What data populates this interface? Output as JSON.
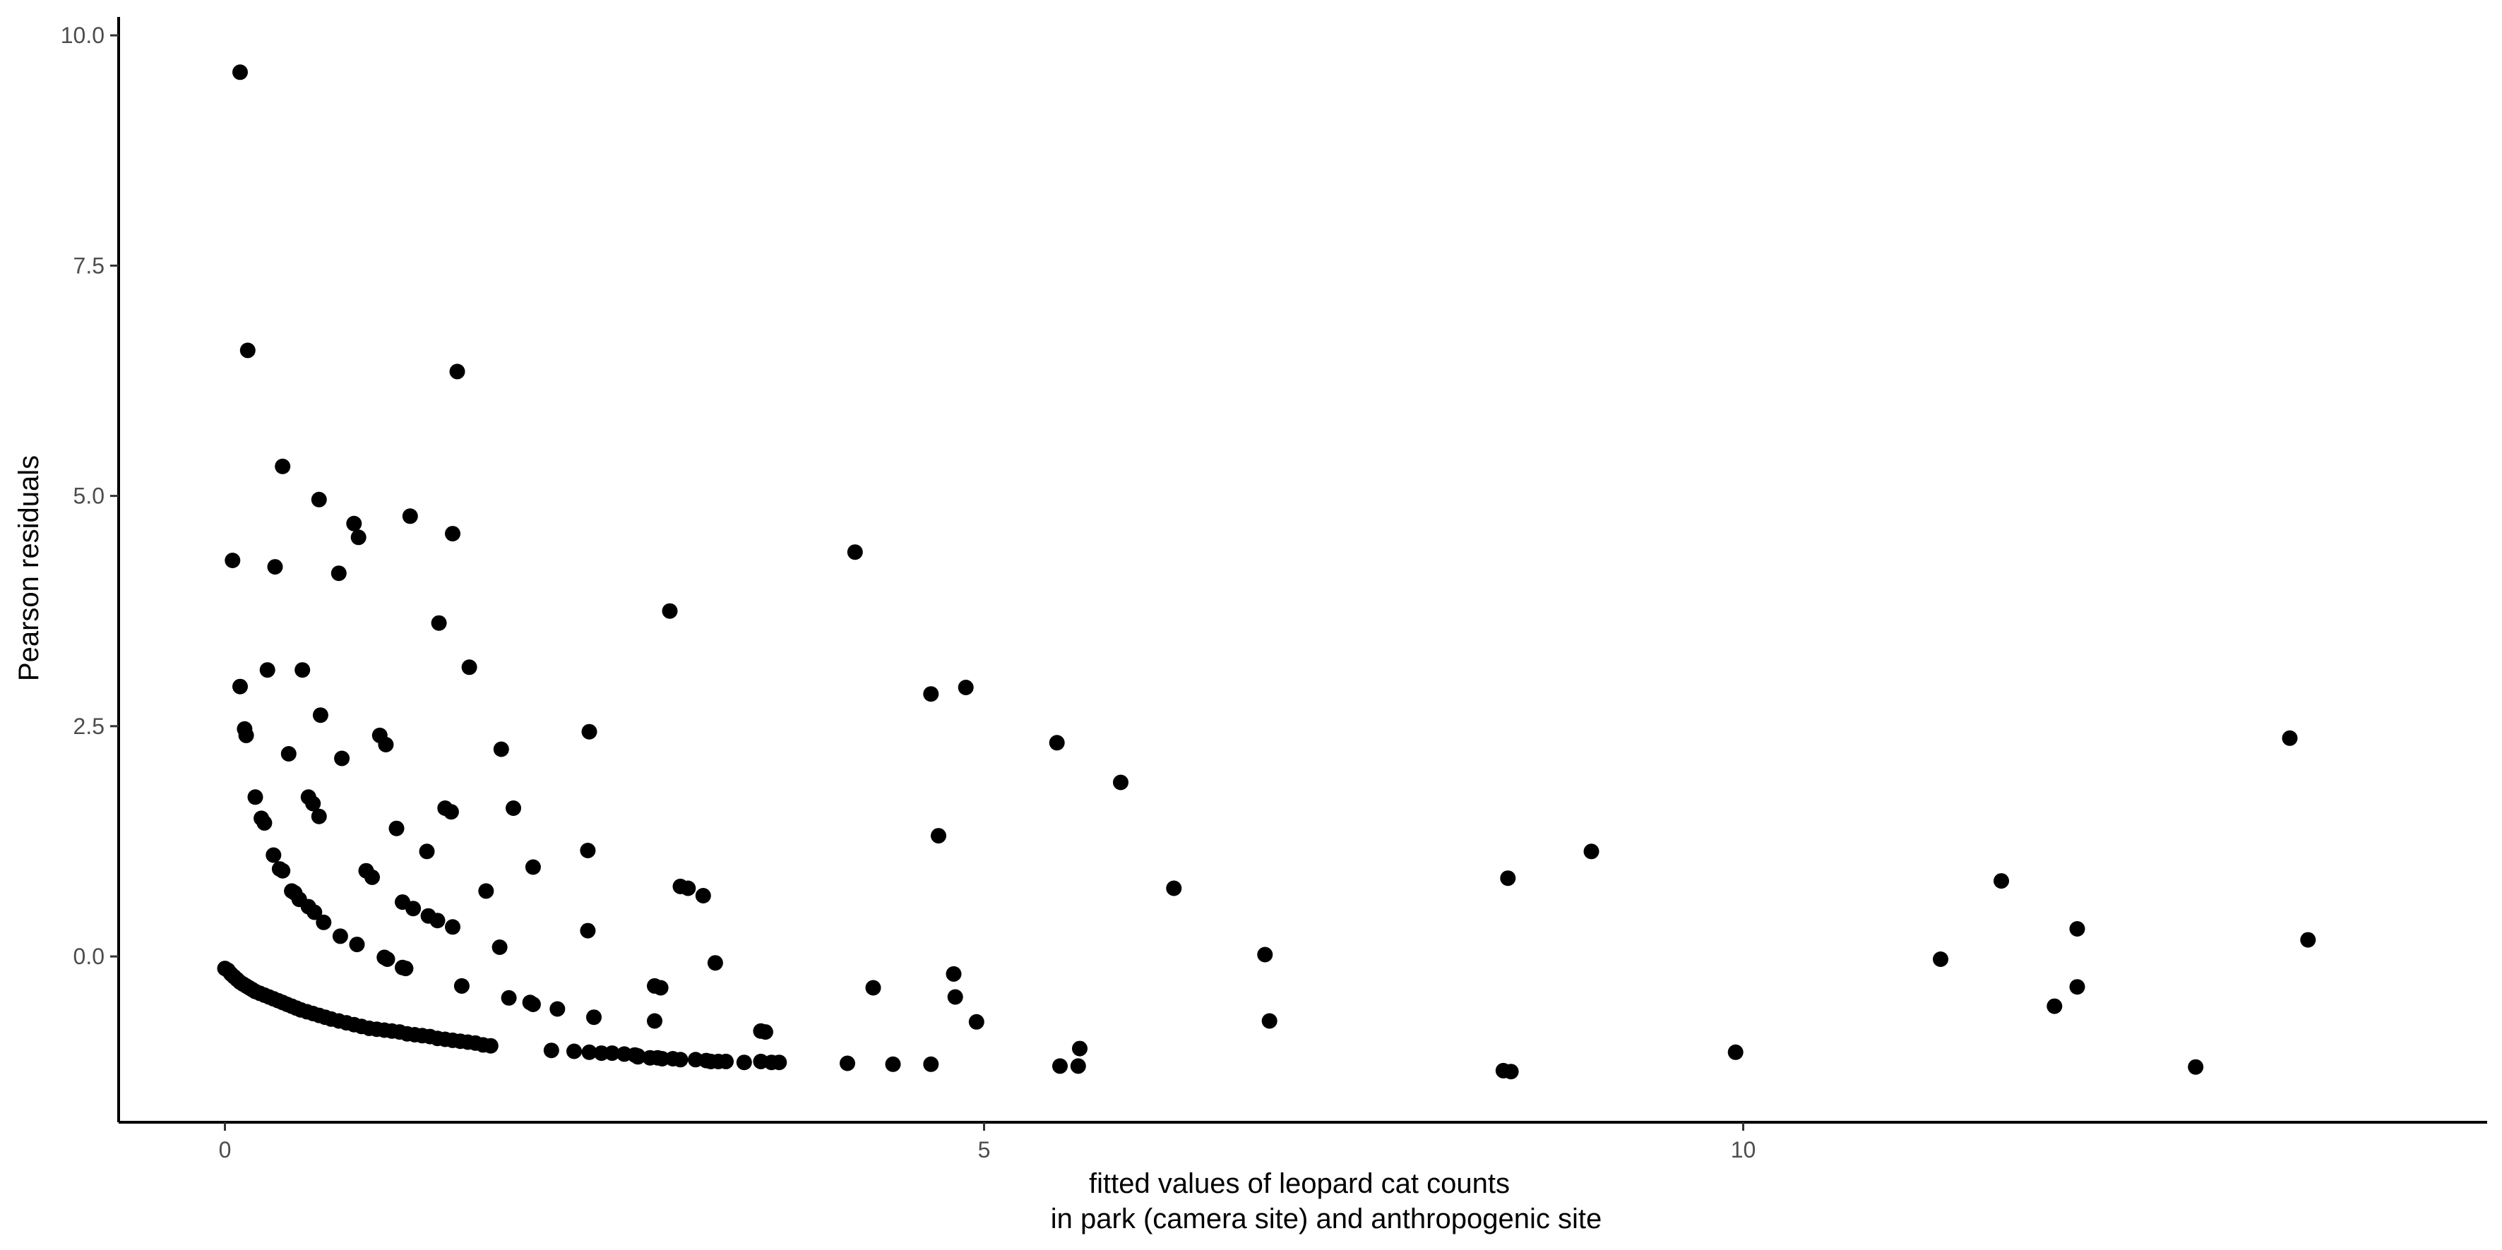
{
  "chart_data": {
    "type": "scatter",
    "title": "",
    "xlabel_lines": [
      "fitted values of leopard cat counts",
      "in park (camera site) and anthropogenic site"
    ],
    "ylabel": "Pearson residuals",
    "xlim": [
      -0.7,
      14.9
    ],
    "ylim": [
      -1.8,
      10.2
    ],
    "x_ticks": [
      0,
      5,
      10
    ],
    "x_tick_labels": [
      "0",
      "5",
      "10"
    ],
    "y_ticks": [
      0,
      2.5,
      5,
      7.5,
      10
    ],
    "y_tick_labels": [
      "0.0",
      "2.5",
      "5.0",
      "7.5",
      "10.0"
    ],
    "grid": false,
    "legend": "none",
    "point_color": "#000000",
    "points": [
      [
        0.0,
        -0.13
      ],
      [
        0.02,
        -0.15
      ],
      [
        0.04,
        -0.19
      ],
      [
        0.06,
        -0.22
      ],
      [
        0.08,
        -0.25
      ],
      [
        0.1,
        -0.28
      ],
      [
        0.12,
        -0.3
      ],
      [
        0.14,
        -0.32
      ],
      [
        0.16,
        -0.34
      ],
      [
        0.18,
        -0.36
      ],
      [
        0.2,
        -0.38
      ],
      [
        0.23,
        -0.4
      ],
      [
        0.26,
        -0.42
      ],
      [
        0.29,
        -0.44
      ],
      [
        0.32,
        -0.46
      ],
      [
        0.35,
        -0.48
      ],
      [
        0.38,
        -0.5
      ],
      [
        0.41,
        -0.52
      ],
      [
        0.44,
        -0.54
      ],
      [
        0.47,
        -0.56
      ],
      [
        0.5,
        -0.58
      ],
      [
        0.54,
        -0.6
      ],
      [
        0.58,
        -0.62
      ],
      [
        0.62,
        -0.64
      ],
      [
        0.66,
        -0.66
      ],
      [
        0.7,
        -0.68
      ],
      [
        0.75,
        -0.7
      ],
      [
        0.8,
        -0.72
      ],
      [
        0.85,
        -0.74
      ],
      [
        0.9,
        -0.76
      ],
      [
        0.95,
        -0.78
      ],
      [
        1.0,
        -0.79
      ],
      [
        1.05,
        -0.8
      ],
      [
        1.1,
        -0.81
      ],
      [
        1.15,
        -0.82
      ],
      [
        1.2,
        -0.84
      ],
      [
        1.25,
        -0.85
      ],
      [
        1.3,
        -0.86
      ],
      [
        1.35,
        -0.87
      ],
      [
        1.4,
        -0.89
      ],
      [
        1.45,
        -0.9
      ],
      [
        1.5,
        -0.91
      ],
      [
        1.55,
        -0.92
      ],
      [
        1.6,
        -0.93
      ],
      [
        1.65,
        -0.94
      ],
      [
        1.7,
        -0.96
      ],
      [
        1.75,
        -0.97
      ],
      [
        2.15,
        -1.02
      ],
      [
        2.3,
        -1.03
      ],
      [
        2.4,
        -1.04
      ],
      [
        2.48,
        -1.05
      ],
      [
        2.55,
        -1.05
      ],
      [
        2.63,
        -1.06
      ],
      [
        2.7,
        -1.07
      ],
      [
        2.72,
        -1.08
      ],
      [
        2.72,
        -1.09
      ],
      [
        2.8,
        -1.1
      ],
      [
        2.85,
        -1.1
      ],
      [
        2.88,
        -1.11
      ],
      [
        2.95,
        -1.11
      ],
      [
        3.0,
        -1.12
      ],
      [
        3.1,
        -1.12
      ],
      [
        3.17,
        -1.13
      ],
      [
        3.2,
        -1.14
      ],
      [
        3.25,
        -1.14
      ],
      [
        3.3,
        -1.14
      ],
      [
        3.42,
        -1.15
      ],
      [
        3.53,
        -1.14
      ],
      [
        3.6,
        -1.15
      ],
      [
        3.65,
        -1.15
      ],
      [
        4.1,
        -1.16
      ],
      [
        4.4,
        -1.17
      ],
      [
        4.65,
        -1.17
      ],
      [
        5.5,
        -1.19
      ],
      [
        5.62,
        -1.19
      ],
      [
        8.47,
        -1.25
      ],
      [
        8.42,
        -1.24
      ],
      [
        12.98,
        -1.2
      ],
      [
        0.1,
        9.6
      ],
      [
        0.15,
        6.58
      ],
      [
        1.53,
        6.35
      ],
      [
        0.38,
        5.32
      ],
      [
        0.62,
        4.96
      ],
      [
        0.85,
        4.7
      ],
      [
        0.88,
        4.55
      ],
      [
        1.22,
        4.78
      ],
      [
        1.5,
        4.59
      ],
      [
        0.05,
        4.3
      ],
      [
        0.33,
        4.23
      ],
      [
        0.75,
        4.16
      ],
      [
        4.15,
        4.39
      ],
      [
        1.41,
        3.62
      ],
      [
        2.93,
        3.75
      ],
      [
        0.28,
        3.11
      ],
      [
        0.51,
        3.11
      ],
      [
        1.61,
        3.14
      ],
      [
        0.1,
        2.93
      ],
      [
        0.63,
        2.62
      ],
      [
        4.65,
        2.85
      ],
      [
        4.88,
        2.92
      ],
      [
        0.13,
        2.47
      ],
      [
        0.14,
        2.4
      ],
      [
        1.02,
        2.4
      ],
      [
        1.06,
        2.3
      ],
      [
        2.4,
        2.44
      ],
      [
        0.42,
        2.2
      ],
      [
        0.77,
        2.15
      ],
      [
        1.82,
        2.25
      ],
      [
        5.48,
        2.32
      ],
      [
        5.9,
        1.89
      ],
      [
        13.6,
        2.37
      ],
      [
        0.2,
        1.73
      ],
      [
        0.24,
        1.5
      ],
      [
        0.26,
        1.45
      ],
      [
        0.55,
        1.73
      ],
      [
        0.58,
        1.66
      ],
      [
        0.62,
        1.52
      ],
      [
        1.13,
        1.39
      ],
      [
        1.45,
        1.61
      ],
      [
        1.49,
        1.57
      ],
      [
        1.9,
        1.61
      ],
      [
        4.7,
        1.31
      ],
      [
        0.32,
        1.1
      ],
      [
        0.36,
        0.95
      ],
      [
        0.38,
        0.93
      ],
      [
        0.93,
        0.93
      ],
      [
        0.97,
        0.86
      ],
      [
        1.33,
        1.14
      ],
      [
        2.03,
        0.97
      ],
      [
        2.39,
        1.15
      ],
      [
        0.44,
        0.71
      ],
      [
        0.46,
        0.69
      ],
      [
        0.49,
        0.62
      ],
      [
        0.55,
        0.54
      ],
      [
        0.59,
        0.48
      ],
      [
        0.65,
        0.37
      ],
      [
        0.76,
        0.22
      ],
      [
        0.87,
        0.13
      ],
      [
        1.05,
        -0.01
      ],
      [
        1.07,
        -0.03
      ],
      [
        1.17,
        0.59
      ],
      [
        1.24,
        0.52
      ],
      [
        1.34,
        0.44
      ],
      [
        1.4,
        0.39
      ],
      [
        1.5,
        0.32
      ],
      [
        1.17,
        -0.12
      ],
      [
        1.19,
        -0.13
      ],
      [
        1.72,
        0.71
      ],
      [
        3.0,
        0.76
      ],
      [
        3.05,
        0.74
      ],
      [
        3.15,
        0.66
      ],
      [
        6.25,
        0.74
      ],
      [
        8.45,
        0.85
      ],
      [
        9.0,
        1.14
      ],
      [
        11.7,
        0.82
      ],
      [
        13.72,
        0.18
      ],
      [
        12.2,
        0.3
      ],
      [
        2.39,
        0.28
      ],
      [
        1.81,
        0.1
      ],
      [
        6.85,
        0.02
      ],
      [
        11.3,
        -0.03
      ],
      [
        3.23,
        -0.07
      ],
      [
        4.8,
        -0.19
      ],
      [
        1.56,
        -0.32
      ],
      [
        2.83,
        -0.32
      ],
      [
        2.87,
        -0.34
      ],
      [
        4.27,
        -0.34
      ],
      [
        12.2,
        -0.33
      ],
      [
        1.87,
        -0.45
      ],
      [
        2.01,
        -0.5
      ],
      [
        2.03,
        -0.52
      ],
      [
        4.81,
        -0.44
      ],
      [
        12.05,
        -0.54
      ],
      [
        2.19,
        -0.57
      ],
      [
        2.43,
        -0.66
      ],
      [
        2.83,
        -0.7
      ],
      [
        4.95,
        -0.71
      ],
      [
        6.88,
        -0.7
      ],
      [
        3.53,
        -0.81
      ],
      [
        3.56,
        -0.82
      ],
      [
        5.63,
        -1.0
      ],
      [
        9.95,
        -1.04
      ]
    ]
  }
}
